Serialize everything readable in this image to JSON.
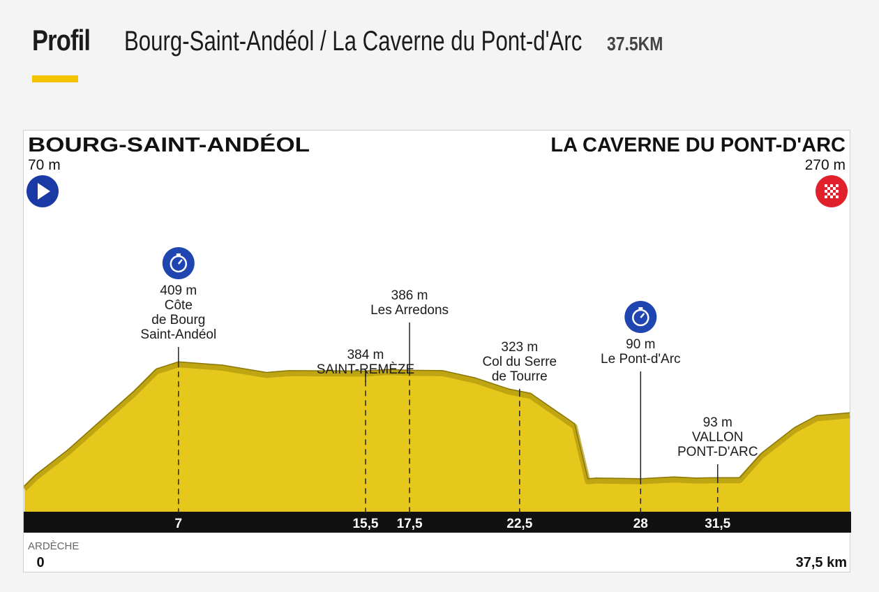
{
  "header": {
    "section_label": "Profil",
    "route": "Bourg-Saint-Andéol / La Caverne du Pont-d'Arc",
    "distance": "37.5KM"
  },
  "colors": {
    "accent": "#f5c400",
    "terrain_fill": "#e6c71c",
    "terrain_shadow": "#b39a10",
    "road_band": "#111111",
    "start_badge": "#1a3aa6",
    "checkpoint_badge": "#1f45b0",
    "finish_badge": "#e0202a"
  },
  "chart_data": {
    "type": "area",
    "title": "",
    "xlabel": "",
    "ylabel": "",
    "xlim": [
      0,
      37.5
    ],
    "ylim": [
      0,
      480
    ],
    "start": {
      "name": "BOURG-SAINT-ANDÉOL",
      "altitude": "70 m",
      "icon": "start-play-icon"
    },
    "finish": {
      "name": "LA CAVERNE DU PONT-D'ARC",
      "altitude": "270 m",
      "icon": "finish-checkered-icon"
    },
    "department": "ARDÈCHE",
    "x_start_label": "0",
    "x_end_label": "37,5 km",
    "elevation_profile": {
      "x": [
        0,
        0.5,
        2,
        3.5,
        5,
        6,
        7,
        9,
        11,
        12,
        15.5,
        16.5,
        17.5,
        19,
        20.5,
        22,
        23,
        25,
        25.6,
        26,
        28,
        29.5,
        30.5,
        31.5,
        32.5,
        33.5,
        35,
        36,
        37.5
      ],
      "y": [
        70,
        100,
        170,
        250,
        330,
        390,
        409,
        400,
        380,
        385,
        384,
        388,
        386,
        385,
        365,
        335,
        323,
        240,
        90,
        92,
        90,
        95,
        92,
        93,
        93,
        160,
        230,
        262,
        270
      ]
    },
    "waypoints": [
      {
        "km": 7,
        "km_label": "7",
        "altitude": "409 m",
        "name_lines": [
          "Côte",
          "de Bourg",
          "Saint-Andéol"
        ],
        "timing_point": true
      },
      {
        "km": 15.5,
        "km_label": "15,5",
        "altitude": "384 m",
        "name_lines": [
          "SAINT-REMÈZE"
        ],
        "timing_point": false
      },
      {
        "km": 17.5,
        "km_label": "17,5",
        "altitude": "386 m",
        "name_lines": [
          "Les Arredons"
        ],
        "timing_point": false
      },
      {
        "km": 22.5,
        "km_label": "22,5",
        "altitude": "323 m",
        "name_lines": [
          "Col du Serre",
          "de Tourre"
        ],
        "timing_point": false
      },
      {
        "km": 28,
        "km_label": "28",
        "altitude": "90 m",
        "name_lines": [
          "Le Pont-d'Arc"
        ],
        "timing_point": true
      },
      {
        "km": 31.5,
        "km_label": "31,5",
        "altitude": "93 m",
        "name_lines": [
          "VALLON",
          "PONT-D'ARC"
        ],
        "timing_point": false
      }
    ]
  }
}
